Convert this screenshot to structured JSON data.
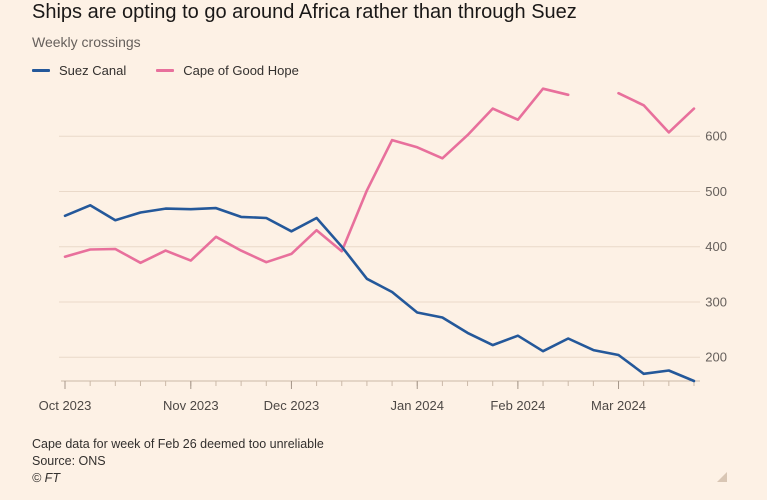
{
  "title": "Ships are opting to go around Africa rather than through Suez",
  "subtitle": "Weekly crossings",
  "legend": [
    {
      "name": "Suez Canal",
      "color": "#24589a"
    },
    {
      "name": "Cape of Good Hope",
      "color": "#e8709c"
    }
  ],
  "notes": {
    "note": "Cape data for week of Feb 26 deemed too unreliable",
    "source": "Source: ONS",
    "credit": "© FT"
  },
  "colors": {
    "background": "#fdf1e5",
    "suez": "#24589a",
    "cape": "#e8709c",
    "grid": "#ead9c9"
  },
  "chart_data": {
    "type": "line",
    "title": "Ships are opting to go around Africa rather than through Suez",
    "subtitle": "Weekly crossings",
    "xlabel": "",
    "ylabel": "",
    "x": [
      "2023-10-01",
      "2023-10-08",
      "2023-10-15",
      "2023-10-22",
      "2023-10-29",
      "2023-11-05",
      "2023-11-12",
      "2023-11-19",
      "2023-11-26",
      "2023-12-03",
      "2023-12-10",
      "2023-12-17",
      "2023-12-24",
      "2023-12-31",
      "2024-01-07",
      "2024-01-14",
      "2024-01-21",
      "2024-01-28",
      "2024-02-04",
      "2024-02-11",
      "2024-02-18",
      "2024-02-25",
      "2024-03-03",
      "2024-03-10",
      "2024-03-17",
      "2024-03-24"
    ],
    "xticks": [
      {
        "label": "Oct 2023",
        "date": "2023-10-01"
      },
      {
        "label": "Nov 2023",
        "date": "2023-11-05"
      },
      {
        "label": "Dec 2023",
        "date": "2023-12-03"
      },
      {
        "label": "Jan 2024",
        "date": "2024-01-07"
      },
      {
        "label": "Feb 2024",
        "date": "2024-02-04"
      },
      {
        "label": "Mar 2024",
        "date": "2024-03-03"
      }
    ],
    "yticks": [
      200,
      300,
      400,
      500,
      600
    ],
    "ylim": [
      157,
      700
    ],
    "grid": true,
    "y_axis_side": "right",
    "legend_position": "top-left",
    "series": [
      {
        "name": "Suez Canal",
        "color": "#24589a",
        "values": [
          456,
          475,
          448,
          462,
          469,
          468,
          470,
          454,
          452,
          428,
          452,
          400,
          342,
          318,
          281,
          272,
          244,
          222,
          239,
          211,
          234,
          213,
          204,
          170,
          176,
          157
        ]
      },
      {
        "name": "Cape of Good Hope",
        "color": "#e8709c",
        "values": [
          382,
          395,
          396,
          371,
          393,
          375,
          418,
          393,
          372,
          387,
          430,
          392,
          502,
          593,
          580,
          560,
          602,
          650,
          630,
          686,
          675,
          null,
          678,
          656,
          607,
          650
        ]
      }
    ]
  }
}
